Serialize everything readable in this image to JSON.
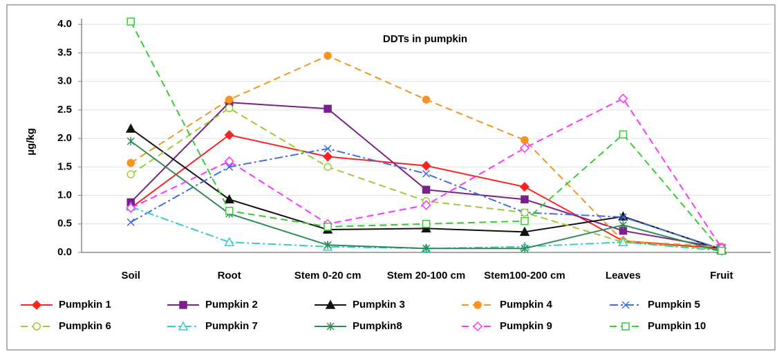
{
  "chart_data": {
    "type": "line",
    "title": "DDTs in pumpkin",
    "y_label": "µg/kg",
    "categories": [
      "Soil",
      "Root",
      "Stem  0-20 cm",
      "Stem 20-100 cm",
      "Stem100-200 cm",
      "Leaves",
      "Fruit"
    ],
    "ylim": [
      0,
      4.1
    ],
    "yticks": [
      {
        "value": 0,
        "label": "0.0"
      },
      0.5,
      {
        "value": 1,
        "label": "1.0"
      },
      1.5,
      {
        "value": 2,
        "label": "2.0"
      },
      2.5,
      {
        "value": 3,
        "label": "3.0"
      },
      3.5,
      {
        "value": 4,
        "label": "4.0"
      }
    ],
    "grid": true,
    "legend": "bottom",
    "series": [
      {
        "name": "Pumpkin  1",
        "color": "#ff2020",
        "marker": "diamond",
        "filled": true,
        "dash": "solid",
        "values": [
          0.78,
          2.06,
          1.68,
          1.52,
          1.15,
          0.2,
          0.07
        ]
      },
      {
        "name": "Pumpkin  2",
        "color": "#7b1f8c",
        "marker": "square",
        "filled": true,
        "dash": "solid",
        "values": [
          0.88,
          2.63,
          2.52,
          1.1,
          0.93,
          0.38,
          0.08
        ]
      },
      {
        "name": "Pumpkin 3",
        "color": "#111111",
        "marker": "triangle",
        "filled": true,
        "dash": "solid",
        "values": [
          2.17,
          0.93,
          0.4,
          0.42,
          0.36,
          0.63,
          0.05
        ]
      },
      {
        "name": "Pumpkin 4",
        "color": "#f7931e",
        "marker": "circle",
        "filled": true,
        "dash": "dashed",
        "values": [
          1.57,
          2.68,
          3.45,
          2.68,
          1.97,
          0.2,
          0.1
        ]
      },
      {
        "name": "Pumpkin 5",
        "color": "#3d6fe0",
        "marker": "x",
        "filled": false,
        "dash": "dashdot",
        "values": [
          0.53,
          1.5,
          1.82,
          1.38,
          0.7,
          0.62,
          0.06
        ]
      },
      {
        "name": "Pumpkin 6",
        "color": "#9acd32",
        "marker": "circle",
        "filled": false,
        "dash": "dashed",
        "values": [
          1.37,
          2.53,
          1.5,
          0.9,
          0.7,
          0.18,
          0.05
        ]
      },
      {
        "name": "Pumpkin 7",
        "color": "#33cccc",
        "marker": "triangle",
        "filled": false,
        "dash": "dashdot",
        "values": [
          0.8,
          0.18,
          0.1,
          0.07,
          0.1,
          0.18,
          0.03
        ]
      },
      {
        "name": "Pumpkin8",
        "color": "#2e8b57",
        "marker": "asterisk",
        "filled": false,
        "dash": "solid",
        "values": [
          1.95,
          0.68,
          0.13,
          0.07,
          0.07,
          0.48,
          0.02
        ]
      },
      {
        "name": "Pumpkin 9",
        "color": "#ff33ff",
        "marker": "diamond",
        "filled": false,
        "dash": "dashed",
        "values": [
          0.78,
          1.6,
          0.5,
          0.83,
          1.83,
          2.7,
          0.08
        ]
      },
      {
        "name": "Pumpkin 10",
        "color": "#33cc33",
        "marker": "square",
        "filled": false,
        "dash": "dashed",
        "values": [
          4.05,
          0.73,
          0.45,
          0.5,
          0.55,
          2.07,
          0.03
        ]
      }
    ]
  }
}
